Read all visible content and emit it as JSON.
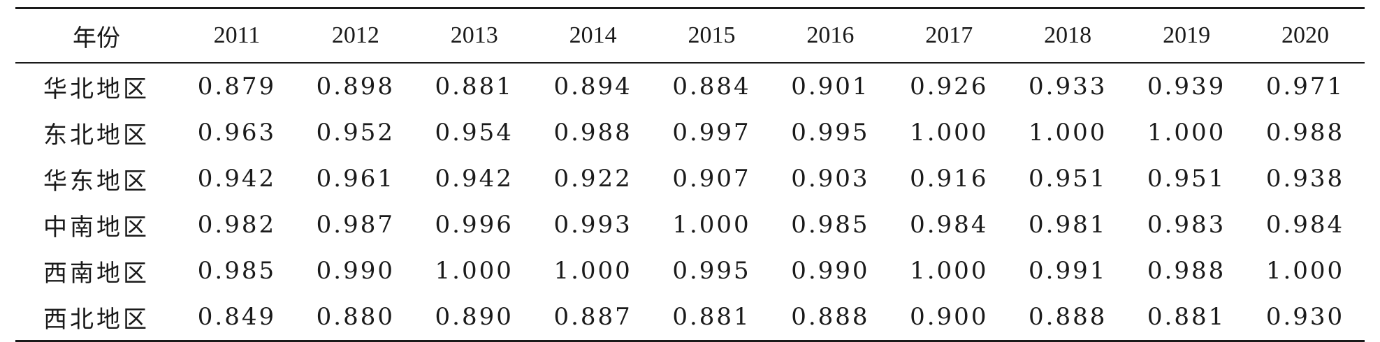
{
  "table": {
    "header": [
      "年份",
      "2011",
      "2012",
      "2013",
      "2014",
      "2015",
      "2016",
      "2017",
      "2018",
      "2019",
      "2020"
    ],
    "rows": [
      {
        "region": "华北地区",
        "values": [
          "0.879",
          "0.898",
          "0.881",
          "0.894",
          "0.884",
          "0.901",
          "0.926",
          "0.933",
          "0.939",
          "0.971"
        ]
      },
      {
        "region": "东北地区",
        "values": [
          "0.963",
          "0.952",
          "0.954",
          "0.988",
          "0.997",
          "0.995",
          "1.000",
          "1.000",
          "1.000",
          "0.988"
        ]
      },
      {
        "region": "华东地区",
        "values": [
          "0.942",
          "0.961",
          "0.942",
          "0.922",
          "0.907",
          "0.903",
          "0.916",
          "0.951",
          "0.951",
          "0.938"
        ]
      },
      {
        "region": "中南地区",
        "values": [
          "0.982",
          "0.987",
          "0.996",
          "0.993",
          "1.000",
          "0.985",
          "0.984",
          "0.981",
          "0.983",
          "0.984"
        ]
      },
      {
        "region": "西南地区",
        "values": [
          "0.985",
          "0.990",
          "1.000",
          "1.000",
          "0.995",
          "0.990",
          "1.000",
          "0.991",
          "0.988",
          "1.000"
        ]
      },
      {
        "region": "西北地区",
        "values": [
          "0.849",
          "0.880",
          "0.890",
          "0.887",
          "0.881",
          "0.888",
          "0.900",
          "0.888",
          "0.881",
          "0.930"
        ]
      }
    ]
  }
}
